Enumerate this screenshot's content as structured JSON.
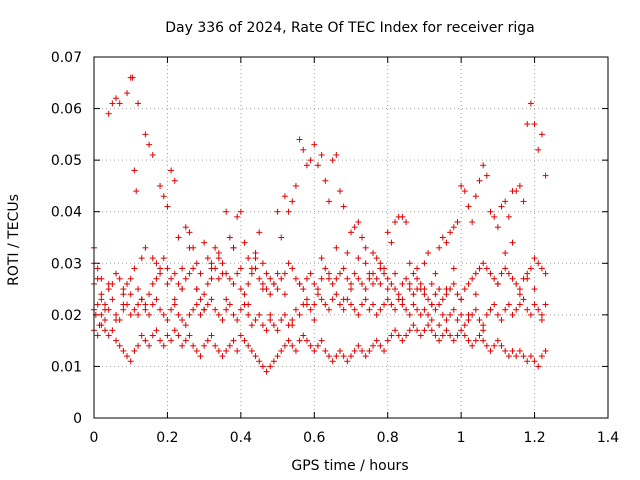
{
  "chart_data": {
    "type": "scatter",
    "title": "Day 336 of 2024, Rate Of TEC Index for receiver riga",
    "xlabel": "GPS time / hours",
    "ylabel": "ROTI / TECUs",
    "xlim": [
      0,
      1.4
    ],
    "ylim": [
      0,
      0.07
    ],
    "xticks": [
      0,
      0.2,
      0.4,
      0.6,
      0.8,
      1,
      1.2,
      1.4
    ],
    "xtick_labels": [
      "0",
      "0.2",
      "0.4",
      "0.6",
      "0.8",
      "1",
      "1.2",
      "1.4"
    ],
    "yticks": [
      0,
      0.01,
      0.02,
      0.03,
      0.04,
      0.05,
      0.06,
      0.07
    ],
    "ytick_labels": [
      "0",
      "0.01",
      "0.02",
      "0.03",
      "0.04",
      "0.05",
      "0.06",
      "0.07"
    ],
    "grid": true,
    "marker": "+",
    "color": "#e00000",
    "series": [
      {
        "x": [
          0.0,
          0.005,
          0.01,
          0.015,
          0.02,
          0.03,
          0.04,
          0.05,
          0.06,
          0.07,
          0.08,
          0.09,
          0.1,
          0.105,
          0.11,
          0.115,
          0.12,
          0.13,
          0.14,
          0.15,
          0.16,
          0.17,
          0.18,
          0.19,
          0.2,
          0.21,
          0.22,
          0.23,
          0.24,
          0.25,
          0.26,
          0.27,
          0.28,
          0.29,
          0.3,
          0.31,
          0.32,
          0.33,
          0.34,
          0.35,
          0.36,
          0.37,
          0.38,
          0.39,
          0.4,
          0.41,
          0.42,
          0.43,
          0.44,
          0.45,
          0.46,
          0.47,
          0.48,
          0.49,
          0.5,
          0.51,
          0.52,
          0.53,
          0.54,
          0.55,
          0.56,
          0.57,
          0.58,
          0.59,
          0.6,
          0.61,
          0.62,
          0.63,
          0.64,
          0.65,
          0.66,
          0.67,
          0.68,
          0.69,
          0.7,
          0.71,
          0.72,
          0.73,
          0.74,
          0.75,
          0.76,
          0.77,
          0.78,
          0.79,
          0.8,
          0.81,
          0.82,
          0.83,
          0.84,
          0.85,
          0.86,
          0.87,
          0.88,
          0.89,
          0.9,
          0.91,
          0.92,
          0.93,
          0.94,
          0.95,
          0.96,
          0.97,
          0.98,
          0.99,
          1.0,
          1.01,
          1.02,
          1.03,
          1.04,
          1.05,
          1.06,
          1.07,
          1.08,
          1.09,
          1.1,
          1.11,
          1.12,
          1.13,
          1.14,
          1.15,
          1.16,
          1.17,
          1.18,
          1.19,
          1.2,
          1.21,
          1.22,
          1.23
        ],
        "y": [
          0.033,
          0.02,
          0.029,
          0.018,
          0.027,
          0.022,
          0.059,
          0.061,
          0.062,
          0.061,
          0.025,
          0.063,
          0.066,
          0.066,
          0.048,
          0.044,
          0.061,
          0.031,
          0.055,
          0.053,
          0.051,
          0.03,
          0.045,
          0.043,
          0.041,
          0.048,
          0.046,
          0.035,
          0.025,
          0.037,
          0.036,
          0.033,
          0.03,
          0.028,
          0.034,
          0.031,
          0.029,
          0.033,
          0.032,
          0.028,
          0.04,
          0.035,
          0.033,
          0.039,
          0.04,
          0.034,
          0.031,
          0.029,
          0.032,
          0.036,
          0.03,
          0.028,
          0.027,
          0.026,
          0.04,
          0.035,
          0.043,
          0.04,
          0.042,
          0.045,
          0.054,
          0.052,
          0.049,
          0.05,
          0.053,
          0.049,
          0.051,
          0.046,
          0.042,
          0.05,
          0.051,
          0.044,
          0.041,
          0.032,
          0.036,
          0.037,
          0.038,
          0.035,
          0.03,
          0.028,
          0.032,
          0.031,
          0.03,
          0.029,
          0.036,
          0.034,
          0.038,
          0.039,
          0.039,
          0.038,
          0.03,
          0.028,
          0.027,
          0.025,
          0.03,
          0.032,
          0.026,
          0.028,
          0.033,
          0.035,
          0.034,
          0.036,
          0.037,
          0.038,
          0.045,
          0.044,
          0.041,
          0.038,
          0.043,
          0.046,
          0.049,
          0.047,
          0.04,
          0.039,
          0.037,
          0.041,
          0.042,
          0.039,
          0.044,
          0.044,
          0.045,
          0.042,
          0.057,
          0.061,
          0.057,
          0.052,
          0.055,
          0.047
        ]
      },
      {
        "x": [
          0.0,
          0.01,
          0.02,
          0.03,
          0.04,
          0.05,
          0.06,
          0.07,
          0.08,
          0.09,
          0.1,
          0.11,
          0.12,
          0.13,
          0.14,
          0.15,
          0.16,
          0.17,
          0.18,
          0.19,
          0.2,
          0.21,
          0.22,
          0.23,
          0.24,
          0.25,
          0.26,
          0.27,
          0.28,
          0.29,
          0.3,
          0.31,
          0.32,
          0.33,
          0.34,
          0.35,
          0.36,
          0.37,
          0.38,
          0.39,
          0.4,
          0.41,
          0.42,
          0.43,
          0.44,
          0.45,
          0.46,
          0.47,
          0.48,
          0.49,
          0.5,
          0.51,
          0.52,
          0.53,
          0.54,
          0.55,
          0.56,
          0.57,
          0.58,
          0.59,
          0.6,
          0.61,
          0.62,
          0.63,
          0.64,
          0.65,
          0.66,
          0.67,
          0.68,
          0.69,
          0.7,
          0.71,
          0.72,
          0.73,
          0.74,
          0.75,
          0.76,
          0.77,
          0.78,
          0.79,
          0.8,
          0.81,
          0.82,
          0.83,
          0.84,
          0.85,
          0.86,
          0.87,
          0.88,
          0.89,
          0.9,
          0.91,
          0.92,
          0.93,
          0.94,
          0.95,
          0.96,
          0.97,
          0.98,
          0.99,
          1.0,
          1.01,
          1.02,
          1.03,
          1.04,
          1.05,
          1.06,
          1.07,
          1.08,
          1.09,
          1.1,
          1.11,
          1.12,
          1.13,
          1.14,
          1.15,
          1.16,
          1.17,
          1.18,
          1.19,
          1.2,
          1.21,
          1.22,
          1.23
        ],
        "y": [
          0.026,
          0.027,
          0.024,
          0.021,
          0.025,
          0.026,
          0.028,
          0.027,
          0.024,
          0.026,
          0.027,
          0.029,
          0.025,
          0.023,
          0.022,
          0.024,
          0.026,
          0.027,
          0.029,
          0.031,
          0.029,
          0.027,
          0.028,
          0.026,
          0.025,
          0.027,
          0.028,
          0.029,
          0.025,
          0.023,
          0.024,
          0.026,
          0.027,
          0.029,
          0.031,
          0.03,
          0.028,
          0.027,
          0.026,
          0.028,
          0.025,
          0.024,
          0.026,
          0.028,
          0.029,
          0.027,
          0.026,
          0.025,
          0.024,
          0.026,
          0.025,
          0.027,
          0.028,
          0.03,
          0.029,
          0.027,
          0.026,
          0.025,
          0.027,
          0.028,
          0.026,
          0.025,
          0.027,
          0.029,
          0.028,
          0.026,
          0.027,
          0.028,
          0.029,
          0.027,
          0.026,
          0.028,
          0.027,
          0.026,
          0.025,
          0.027,
          0.028,
          0.027,
          0.026,
          0.028,
          0.027,
          0.026,
          0.025,
          0.024,
          0.026,
          0.027,
          0.025,
          0.024,
          0.025,
          0.026,
          0.024,
          0.023,
          0.022,
          0.024,
          0.025,
          0.023,
          0.024,
          0.025,
          0.026,
          0.024,
          0.023,
          0.025,
          0.026,
          0.027,
          0.028,
          0.029,
          0.03,
          0.029,
          0.028,
          0.027,
          0.026,
          0.028,
          0.029,
          0.028,
          0.027,
          0.026,
          0.025,
          0.027,
          0.028,
          0.029,
          0.031,
          0.03,
          0.029,
          0.028
        ]
      },
      {
        "x": [
          0.0,
          0.01,
          0.02,
          0.03,
          0.04,
          0.05,
          0.06,
          0.07,
          0.08,
          0.09,
          0.1,
          0.11,
          0.12,
          0.13,
          0.14,
          0.15,
          0.16,
          0.17,
          0.18,
          0.19,
          0.2,
          0.21,
          0.22,
          0.23,
          0.24,
          0.25,
          0.26,
          0.27,
          0.28,
          0.29,
          0.3,
          0.31,
          0.32,
          0.33,
          0.34,
          0.35,
          0.36,
          0.37,
          0.38,
          0.39,
          0.4,
          0.41,
          0.42,
          0.43,
          0.44,
          0.45,
          0.46,
          0.47,
          0.48,
          0.49,
          0.5,
          0.51,
          0.52,
          0.53,
          0.54,
          0.55,
          0.56,
          0.57,
          0.58,
          0.59,
          0.6,
          0.61,
          0.62,
          0.63,
          0.64,
          0.65,
          0.66,
          0.67,
          0.68,
          0.69,
          0.7,
          0.71,
          0.72,
          0.73,
          0.74,
          0.75,
          0.76,
          0.77,
          0.78,
          0.79,
          0.8,
          0.81,
          0.82,
          0.83,
          0.84,
          0.85,
          0.86,
          0.87,
          0.88,
          0.89,
          0.9,
          0.91,
          0.92,
          0.93,
          0.94,
          0.95,
          0.96,
          0.97,
          0.98,
          0.99,
          1.0,
          1.01,
          1.02,
          1.03,
          1.04,
          1.05,
          1.06,
          1.07,
          1.08,
          1.09,
          1.1,
          1.11,
          1.12,
          1.13,
          1.14,
          1.15,
          1.16,
          1.17,
          1.18,
          1.19,
          1.2,
          1.21,
          1.22,
          1.23
        ],
        "y": [
          0.021,
          0.022,
          0.02,
          0.019,
          0.021,
          0.023,
          0.02,
          0.019,
          0.021,
          0.022,
          0.02,
          0.021,
          0.022,
          0.023,
          0.021,
          0.02,
          0.022,
          0.023,
          0.021,
          0.02,
          0.019,
          0.021,
          0.022,
          0.02,
          0.019,
          0.018,
          0.02,
          0.021,
          0.022,
          0.02,
          0.021,
          0.022,
          0.023,
          0.021,
          0.02,
          0.019,
          0.021,
          0.022,
          0.02,
          0.019,
          0.021,
          0.022,
          0.02,
          0.018,
          0.019,
          0.02,
          0.018,
          0.017,
          0.019,
          0.018,
          0.017,
          0.019,
          0.02,
          0.018,
          0.019,
          0.021,
          0.02,
          0.022,
          0.023,
          0.021,
          0.022,
          0.024,
          0.023,
          0.022,
          0.021,
          0.023,
          0.024,
          0.022,
          0.021,
          0.023,
          0.022,
          0.021,
          0.02,
          0.022,
          0.023,
          0.021,
          0.022,
          0.02,
          0.021,
          0.022,
          0.023,
          0.022,
          0.021,
          0.023,
          0.022,
          0.021,
          0.02,
          0.022,
          0.021,
          0.02,
          0.021,
          0.02,
          0.019,
          0.021,
          0.022,
          0.02,
          0.019,
          0.02,
          0.021,
          0.019,
          0.02,
          0.018,
          0.019,
          0.02,
          0.021,
          0.019,
          0.018,
          0.02,
          0.021,
          0.022,
          0.02,
          0.019,
          0.021,
          0.022,
          0.02,
          0.021,
          0.022,
          0.023,
          0.021,
          0.02,
          0.022,
          0.021,
          0.02,
          0.022
        ]
      },
      {
        "x": [
          0.0,
          0.01,
          0.02,
          0.03,
          0.04,
          0.05,
          0.06,
          0.07,
          0.08,
          0.09,
          0.1,
          0.11,
          0.12,
          0.13,
          0.14,
          0.15,
          0.16,
          0.17,
          0.18,
          0.19,
          0.2,
          0.21,
          0.22,
          0.23,
          0.24,
          0.25,
          0.26,
          0.27,
          0.28,
          0.29,
          0.3,
          0.31,
          0.32,
          0.33,
          0.34,
          0.35,
          0.36,
          0.37,
          0.38,
          0.39,
          0.4,
          0.41,
          0.42,
          0.43,
          0.44,
          0.45,
          0.46,
          0.47,
          0.48,
          0.49,
          0.5,
          0.51,
          0.52,
          0.53,
          0.54,
          0.55,
          0.56,
          0.57,
          0.58,
          0.59,
          0.6,
          0.61,
          0.62,
          0.63,
          0.64,
          0.65,
          0.66,
          0.67,
          0.68,
          0.69,
          0.7,
          0.71,
          0.72,
          0.73,
          0.74,
          0.75,
          0.76,
          0.77,
          0.78,
          0.79,
          0.8,
          0.81,
          0.82,
          0.83,
          0.84,
          0.85,
          0.86,
          0.87,
          0.88,
          0.89,
          0.9,
          0.91,
          0.92,
          0.93,
          0.94,
          0.95,
          0.96,
          0.97,
          0.98,
          0.99,
          1.0,
          1.01,
          1.02,
          1.03,
          1.04,
          1.05,
          1.06,
          1.07,
          1.08,
          1.09,
          1.1,
          1.11,
          1.12,
          1.13,
          1.14,
          1.15,
          1.16,
          1.17,
          1.18,
          1.19,
          1.2,
          1.21,
          1.22,
          1.23
        ],
        "y": [
          0.017,
          0.016,
          0.018,
          0.017,
          0.016,
          0.017,
          0.015,
          0.014,
          0.013,
          0.012,
          0.011,
          0.013,
          0.014,
          0.016,
          0.015,
          0.014,
          0.016,
          0.017,
          0.015,
          0.014,
          0.016,
          0.015,
          0.017,
          0.016,
          0.014,
          0.015,
          0.016,
          0.014,
          0.013,
          0.012,
          0.014,
          0.015,
          0.016,
          0.014,
          0.013,
          0.012,
          0.013,
          0.014,
          0.015,
          0.013,
          0.016,
          0.015,
          0.014,
          0.013,
          0.012,
          0.011,
          0.01,
          0.009,
          0.01,
          0.011,
          0.012,
          0.013,
          0.014,
          0.015,
          0.014,
          0.013,
          0.015,
          0.016,
          0.015,
          0.014,
          0.013,
          0.014,
          0.015,
          0.013,
          0.012,
          0.011,
          0.012,
          0.013,
          0.012,
          0.011,
          0.012,
          0.013,
          0.014,
          0.013,
          0.012,
          0.013,
          0.014,
          0.015,
          0.014,
          0.013,
          0.015,
          0.016,
          0.017,
          0.016,
          0.015,
          0.016,
          0.017,
          0.018,
          0.017,
          0.016,
          0.017,
          0.018,
          0.017,
          0.016,
          0.015,
          0.016,
          0.017,
          0.016,
          0.015,
          0.016,
          0.017,
          0.016,
          0.015,
          0.014,
          0.015,
          0.016,
          0.015,
          0.014,
          0.013,
          0.014,
          0.015,
          0.014,
          0.013,
          0.012,
          0.013,
          0.012,
          0.013,
          0.012,
          0.011,
          0.012,
          0.011,
          0.01,
          0.012,
          0.013
        ]
      },
      {
        "x": [
          0.0,
          0.02,
          0.04,
          0.06,
          0.08,
          0.1,
          0.12,
          0.14,
          0.16,
          0.18,
          0.2,
          0.22,
          0.24,
          0.26,
          0.28,
          0.3,
          0.32,
          0.34,
          0.36,
          0.38,
          0.4,
          0.42,
          0.44,
          0.46,
          0.48,
          0.5,
          0.52,
          0.54,
          0.56,
          0.58,
          0.6,
          0.62,
          0.64,
          0.66,
          0.68,
          0.7,
          0.72,
          0.74,
          0.76,
          0.78,
          0.8,
          0.82,
          0.84,
          0.86,
          0.88,
          0.9,
          0.92,
          0.94,
          0.96,
          0.98,
          1.0,
          1.02,
          1.04,
          1.06,
          1.08,
          1.1,
          1.12,
          1.14,
          1.16,
          1.18,
          1.2,
          1.22
        ],
        "y": [
          0.03,
          0.023,
          0.026,
          0.019,
          0.022,
          0.024,
          0.02,
          0.033,
          0.031,
          0.028,
          0.026,
          0.023,
          0.029,
          0.033,
          0.025,
          0.021,
          0.03,
          0.027,
          0.023,
          0.033,
          0.029,
          0.022,
          0.031,
          0.025,
          0.02,
          0.028,
          0.024,
          0.018,
          0.026,
          0.022,
          0.019,
          0.031,
          0.027,
          0.033,
          0.023,
          0.025,
          0.031,
          0.033,
          0.026,
          0.029,
          0.025,
          0.028,
          0.023,
          0.026,
          0.029,
          0.025,
          0.022,
          0.018,
          0.025,
          0.029,
          0.023,
          0.02,
          0.024,
          0.017,
          0.021,
          0.026,
          0.032,
          0.034,
          0.024,
          0.027,
          0.025,
          0.019
        ]
      }
    ]
  }
}
